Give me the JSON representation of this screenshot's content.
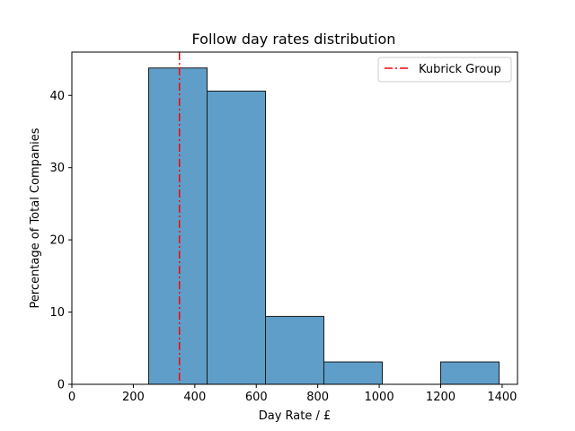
{
  "chart_data": {
    "type": "bar",
    "title": "Follow day rates distribution",
    "xlabel": "Day Rate / £",
    "ylabel": "Percentage of Total Companies",
    "xlim": [
      0,
      1450
    ],
    "ylim": [
      0,
      46
    ],
    "xticks": [
      0,
      200,
      400,
      600,
      800,
      1000,
      1200,
      1400
    ],
    "yticks": [
      0,
      10,
      20,
      30,
      40
    ],
    "grid": false,
    "legend": {
      "placement": "top-right",
      "entries": [
        {
          "label": "Kubrick Group",
          "color": "#ff0000",
          "style": "dash-dot"
        }
      ]
    },
    "bins": [
      {
        "x0": 250,
        "x1": 440,
        "value": 43.8
      },
      {
        "x0": 440,
        "x1": 630,
        "value": 40.6
      },
      {
        "x0": 630,
        "x1": 820,
        "value": 9.4
      },
      {
        "x0": 820,
        "x1": 1010,
        "value": 3.1
      },
      {
        "x0": 1010,
        "x1": 1200,
        "value": 0
      },
      {
        "x0": 1200,
        "x1": 1390,
        "value": 3.1
      }
    ],
    "reference_line": {
      "label": "Kubrick Group",
      "x": 350,
      "color": "#ff0000"
    },
    "bar_color": "#5f9ec9",
    "bar_edge_color": "#1a1a1a"
  }
}
